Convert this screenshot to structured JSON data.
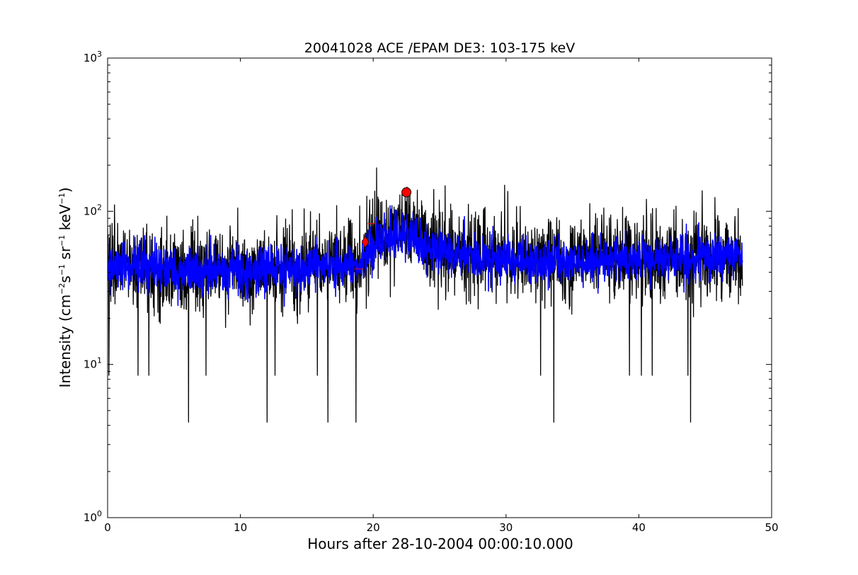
{
  "chart_data": {
    "type": "line",
    "title": "20041028 ACE /EPAM DE3: 103-175 keV",
    "xlabel": "Hours after 28-10-2004 00:00:10.000",
    "ylabel": {
      "prefix": "Intensity (cm",
      "e1": "−2",
      "s": "s",
      "e2": "−1",
      "sr": " sr",
      "e3": "−1",
      "kev": " keV",
      "e4": "−1",
      "suffix": ")"
    },
    "xlim": [
      0,
      50
    ],
    "ylim": [
      1,
      1000
    ],
    "yscale": "log",
    "grid": false,
    "legend": "none",
    "xticks": [
      0,
      10,
      20,
      30,
      40,
      50
    ],
    "yticks": [
      {
        "value": 1,
        "base": "10",
        "exp": "0"
      },
      {
        "value": 10,
        "base": "10",
        "exp": "1"
      },
      {
        "value": 100,
        "base": "10",
        "exp": "2"
      },
      {
        "value": 1000,
        "base": "10",
        "exp": "3"
      }
    ],
    "series": [
      {
        "role": "raw",
        "color": "#000000",
        "x_range": [
          0,
          47.8
        ],
        "profile": [
          [
            0,
            45
          ],
          [
            5,
            42
          ],
          [
            10,
            43
          ],
          [
            15,
            44
          ],
          [
            19,
            46
          ],
          [
            20.5,
            70
          ],
          [
            22.5,
            78
          ],
          [
            24,
            62
          ],
          [
            27,
            52
          ],
          [
            35,
            48
          ],
          [
            40,
            50
          ],
          [
            47.8,
            52
          ]
        ],
        "dips": [
          {
            "x": 6.1,
            "y": 4.2
          },
          {
            "x": 12.0,
            "y": 4.2
          },
          {
            "x": 16.6,
            "y": 4.2
          },
          {
            "x": 18.7,
            "y": 4.2
          },
          {
            "x": 33.6,
            "y": 4.2
          },
          {
            "x": 43.9,
            "y": 4.2
          },
          {
            "x": 0.1,
            "y": 8.5
          },
          {
            "x": 2.3,
            "y": 8.5
          },
          {
            "x": 3.1,
            "y": 8.5
          },
          {
            "x": 7.4,
            "y": 8.5
          },
          {
            "x": 12.6,
            "y": 8.5
          },
          {
            "x": 15.8,
            "y": 8.5
          },
          {
            "x": 32.6,
            "y": 8.5
          },
          {
            "x": 39.3,
            "y": 8.5
          },
          {
            "x": 40.2,
            "y": 8.5
          },
          {
            "x": 41.0,
            "y": 8.5
          },
          {
            "x": 43.7,
            "y": 8.5
          }
        ],
        "spikes": [
          {
            "x": 29.9,
            "y": 148
          },
          {
            "x": 22.4,
            "y": 125
          },
          {
            "x": 9.8,
            "y": 105
          },
          {
            "x": 21.0,
            "y": 118
          },
          {
            "x": 36.3,
            "y": 112
          },
          {
            "x": 42.8,
            "y": 108
          }
        ]
      },
      {
        "role": "smoothed",
        "color": "#0000ff",
        "x_range": [
          0,
          47.8
        ],
        "profile": [
          [
            0,
            44
          ],
          [
            5,
            41
          ],
          [
            10,
            42
          ],
          [
            15,
            43
          ],
          [
            19,
            45
          ],
          [
            20.5,
            65
          ],
          [
            22.5,
            70
          ],
          [
            24,
            58
          ],
          [
            27,
            50
          ],
          [
            35,
            47
          ],
          [
            40,
            49
          ],
          [
            47.8,
            52
          ]
        ]
      }
    ],
    "markers": [
      {
        "shape": "circle",
        "x": 22.5,
        "y": 133,
        "color": "#ff0000"
      },
      {
        "shape": "diamond",
        "x": 19.4,
        "y": 63,
        "color": "#ff0000"
      }
    ],
    "annotations": [
      {
        "shape": "dash",
        "x": 18.9,
        "y": 42,
        "color": "#ff0000"
      },
      {
        "shape": "dash",
        "x": 19.9,
        "y": 83,
        "color": "#ff0000"
      }
    ]
  }
}
